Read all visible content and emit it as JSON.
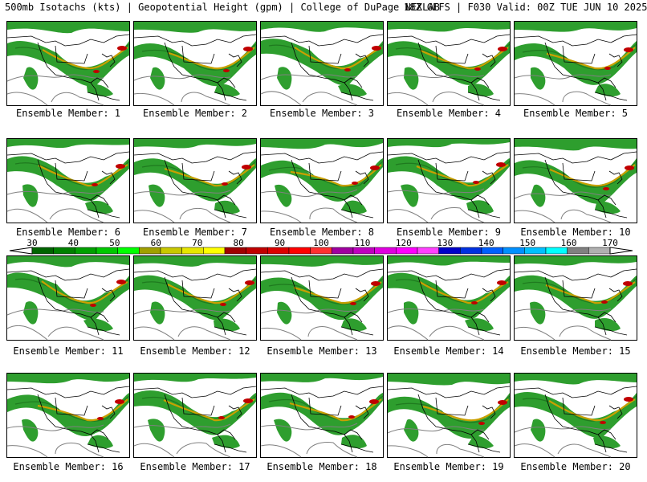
{
  "header": {
    "left": "500mb Isotachs (kts) | Geopotential Height (gpm) | College of DuPage NEXLAB",
    "right": "18Z GEFS | F030 Valid: 00Z TUE JUN 10 2025"
  },
  "panels": [
    {
      "label": "Ensemble Member: 1"
    },
    {
      "label": "Ensemble Member: 2"
    },
    {
      "label": "Ensemble Member: 3"
    },
    {
      "label": "Ensemble Member: 4"
    },
    {
      "label": "Ensemble Member: 5"
    },
    {
      "label": "Ensemble Member: 6"
    },
    {
      "label": "Ensemble Member: 7"
    },
    {
      "label": "Ensemble Member: 8"
    },
    {
      "label": "Ensemble Member: 9"
    },
    {
      "label": "Ensemble Member: 10"
    },
    {
      "label": "Ensemble Member: 11"
    },
    {
      "label": "Ensemble Member: 12"
    },
    {
      "label": "Ensemble Member: 13"
    },
    {
      "label": "Ensemble Member: 14"
    },
    {
      "label": "Ensemble Member: 15"
    },
    {
      "label": "Ensemble Member: 16"
    },
    {
      "label": "Ensemble Member: 17"
    },
    {
      "label": "Ensemble Member: 18"
    },
    {
      "label": "Ensemble Member: 19"
    },
    {
      "label": "Ensemble Member: 20"
    }
  ],
  "colorbar": {
    "ticks": [
      "30",
      "40",
      "50",
      "60",
      "70",
      "80",
      "90",
      "100",
      "110",
      "120",
      "130",
      "140",
      "150",
      "160",
      "170"
    ],
    "colors": [
      "#006400",
      "#008000",
      "#00a000",
      "#00c800",
      "#00ff00",
      "#a0a000",
      "#c8c800",
      "#e6e600",
      "#ffff00",
      "#a00000",
      "#c00000",
      "#dc0000",
      "#ff0000",
      "#ff3030",
      "#a000a0",
      "#c000c0",
      "#e000e0",
      "#ff00ff",
      "#ff40ff",
      "#0000c8",
      "#0030e0",
      "#0060ff",
      "#0090ff",
      "#00c0ff",
      "#00ffff",
      "#808080",
      "#b0b0b0"
    ]
  },
  "map_colors": {
    "wind_base": "#2e9e2e",
    "wind_core": "#1f7a1f",
    "jet_core": "#c8a000",
    "jet_max": "#c00000",
    "height_contour": "#808080",
    "coastline": "#000000"
  }
}
